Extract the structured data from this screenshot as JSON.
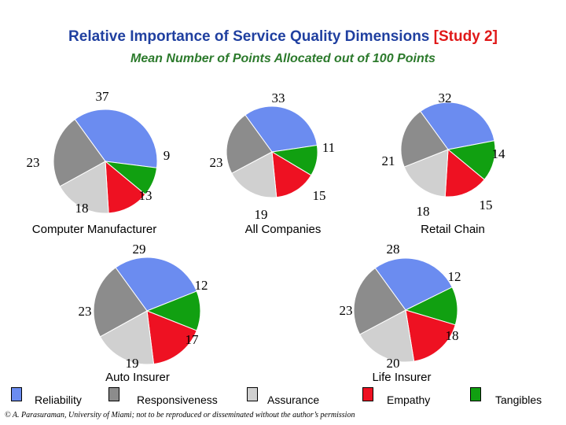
{
  "title": "Relative Importance of Service Quality Dimensions",
  "title_tag": "[Study 2]",
  "subtitle": "Mean Number of Points Allocated out of 100 Points",
  "footer": "© A. Parasuraman, University of Miami; not to be reproduced or disseminated without the author’s permission",
  "colors": {
    "Reliability": "#6b8cf0",
    "Responsiveness": "#8c8c8c",
    "Assurance": "#d0d0d0",
    "Empathy": "#ee1122",
    "Tangibles": "#11a011"
  },
  "legend": [
    "Reliability",
    "Responsiveness",
    "Assurance",
    "Empathy",
    "Tangibles"
  ],
  "chart_data": [
    {
      "type": "pie",
      "title": "Computer Manufacturer",
      "labels": [
        "Reliability",
        "Responsiveness",
        "Assurance",
        "Empathy",
        "Tangibles"
      ],
      "values": [
        37,
        23,
        18,
        13,
        9
      ]
    },
    {
      "type": "pie",
      "title": "All Companies",
      "labels": [
        "Reliability",
        "Responsiveness",
        "Assurance",
        "Empathy",
        "Tangibles"
      ],
      "values": [
        33,
        23,
        19,
        15,
        11
      ]
    },
    {
      "type": "pie",
      "title": "Retail Chain",
      "labels": [
        "Reliability",
        "Responsiveness",
        "Assurance",
        "Empathy",
        "Tangibles"
      ],
      "values": [
        32,
        21,
        18,
        15,
        14
      ]
    },
    {
      "type": "pie",
      "title": "Auto Insurer",
      "labels": [
        "Reliability",
        "Responsiveness",
        "Assurance",
        "Empathy",
        "Tangibles"
      ],
      "values": [
        29,
        23,
        19,
        17,
        12
      ]
    },
    {
      "type": "pie",
      "title": "Life Insurer",
      "labels": [
        "Reliability",
        "Responsiveness",
        "Assurance",
        "Empathy",
        "Tangibles"
      ],
      "values": [
        28,
        23,
        20,
        18,
        12
      ]
    }
  ]
}
